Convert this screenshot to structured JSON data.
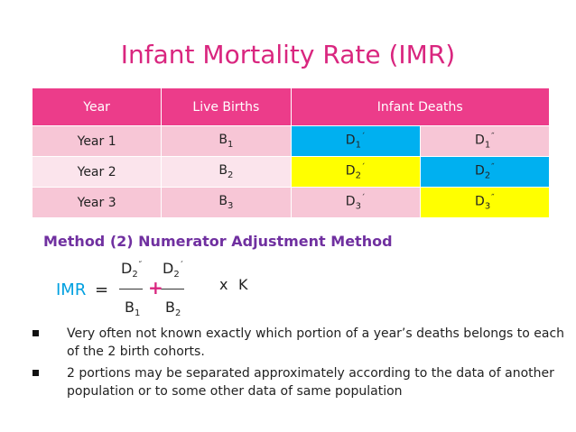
{
  "title": "Infant Mortality Rate (IMR)",
  "table": {
    "headers": {
      "year": "Year",
      "live_births": "Live Births",
      "infant_deaths": "Infant Deaths"
    },
    "rows": [
      {
        "year": "Year 1",
        "b": "B",
        "b_sub": "1",
        "d1": "D",
        "d1_sub": "1",
        "d1_sup": "´",
        "d2": "D",
        "d2_sub": "1",
        "d2_sup": "˝"
      },
      {
        "year": "Year 2",
        "b": "B",
        "b_sub": "2",
        "d1": "D",
        "d1_sub": "2",
        "d1_sup": "´",
        "d2": "D",
        "d2_sub": "2",
        "d2_sup": "˝"
      },
      {
        "year": "Year 3",
        "b": "B",
        "b_sub": "3",
        "d1": "D",
        "d1_sub": "3",
        "d1_sup": "´",
        "d2": "D",
        "d2_sub": "3",
        "d2_sup": "˝"
      }
    ],
    "colors": {
      "header": "#ec3c8a",
      "blue": "#00b0f0",
      "yellow": "#ffff00"
    }
  },
  "method_heading": "Method (2) Numerator Adjustment Method",
  "formula": {
    "label": "IMR",
    "equals": "=",
    "num1": "D",
    "num1_sub": "2",
    "num1_sup": "˝",
    "num2": "D",
    "num2_sub": "2",
    "num2_sup": "´",
    "den1": "B",
    "den1_sub": "1",
    "den2": "B",
    "den2_sub": "2",
    "plus": "+",
    "times": "x",
    "k": "K"
  },
  "bullets": [
    "Very often not known exactly which portion of a year’s deaths belongs to each of the 2 birth cohorts.",
    "2 portions may be separated approximately according to the data of another population or to some other data of same population"
  ]
}
